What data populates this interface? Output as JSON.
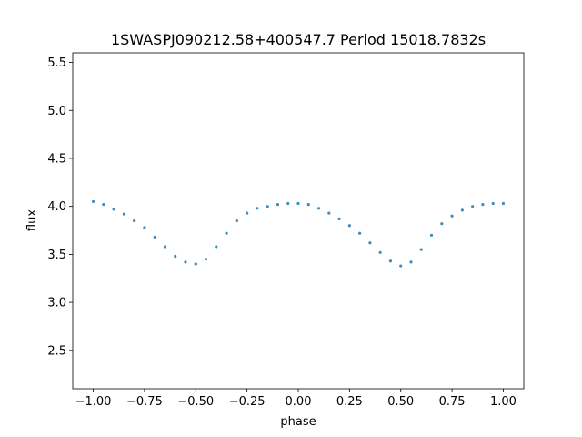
{
  "chart_data": {
    "type": "scatter",
    "title": "1SWASPJ090212.58+400547.7 Period 15018.7832s",
    "xlabel": "phase",
    "ylabel": "flux",
    "xlim": [
      -1.1,
      1.1
    ],
    "ylim": [
      2.1,
      5.6
    ],
    "xticks": [
      -1.0,
      -0.75,
      -0.5,
      -0.25,
      0.0,
      0.25,
      0.5,
      0.75,
      1.0
    ],
    "xtick_labels": [
      "−1.00",
      "−0.75",
      "−0.50",
      "−0.25",
      "0.00",
      "0.25",
      "0.50",
      "0.75",
      "1.00"
    ],
    "yticks": [
      2.5,
      3.0,
      3.5,
      4.0,
      4.5,
      5.0,
      5.5
    ],
    "ytick_labels": [
      "2.5",
      "3.0",
      "3.5",
      "4.0",
      "4.5",
      "5.0",
      "5.5"
    ],
    "grid": false,
    "marker_color": "#1f77b4",
    "series": [
      {
        "points": [
          [
            -1.0,
            4.05
          ],
          [
            -0.95,
            4.02
          ],
          [
            -0.9,
            3.97
          ],
          [
            -0.85,
            3.92
          ],
          [
            -0.8,
            3.85
          ],
          [
            -0.75,
            3.78
          ],
          [
            -0.7,
            3.68
          ],
          [
            -0.65,
            3.58
          ],
          [
            -0.6,
            3.48
          ],
          [
            -0.55,
            3.42
          ],
          [
            -0.5,
            3.4
          ],
          [
            -0.45,
            3.45
          ],
          [
            -0.4,
            3.58
          ],
          [
            -0.35,
            3.72
          ],
          [
            -0.3,
            3.85
          ],
          [
            -0.25,
            3.93
          ],
          [
            -0.2,
            3.98
          ],
          [
            -0.15,
            4.0
          ],
          [
            -0.1,
            4.02
          ],
          [
            -0.05,
            4.03
          ],
          [
            0.0,
            4.03
          ],
          [
            0.05,
            4.02
          ],
          [
            0.1,
            3.98
          ],
          [
            0.15,
            3.93
          ],
          [
            0.2,
            3.87
          ],
          [
            0.25,
            3.8
          ],
          [
            0.3,
            3.72
          ],
          [
            0.35,
            3.62
          ],
          [
            0.4,
            3.52
          ],
          [
            0.45,
            3.43
          ],
          [
            0.5,
            3.38
          ],
          [
            0.55,
            3.42
          ],
          [
            0.6,
            3.55
          ],
          [
            0.65,
            3.7
          ],
          [
            0.7,
            3.82
          ],
          [
            0.75,
            3.9
          ],
          [
            0.8,
            3.96
          ],
          [
            0.85,
            4.0
          ],
          [
            0.9,
            4.02
          ],
          [
            0.95,
            4.03
          ],
          [
            1.0,
            4.03
          ]
        ]
      }
    ]
  }
}
